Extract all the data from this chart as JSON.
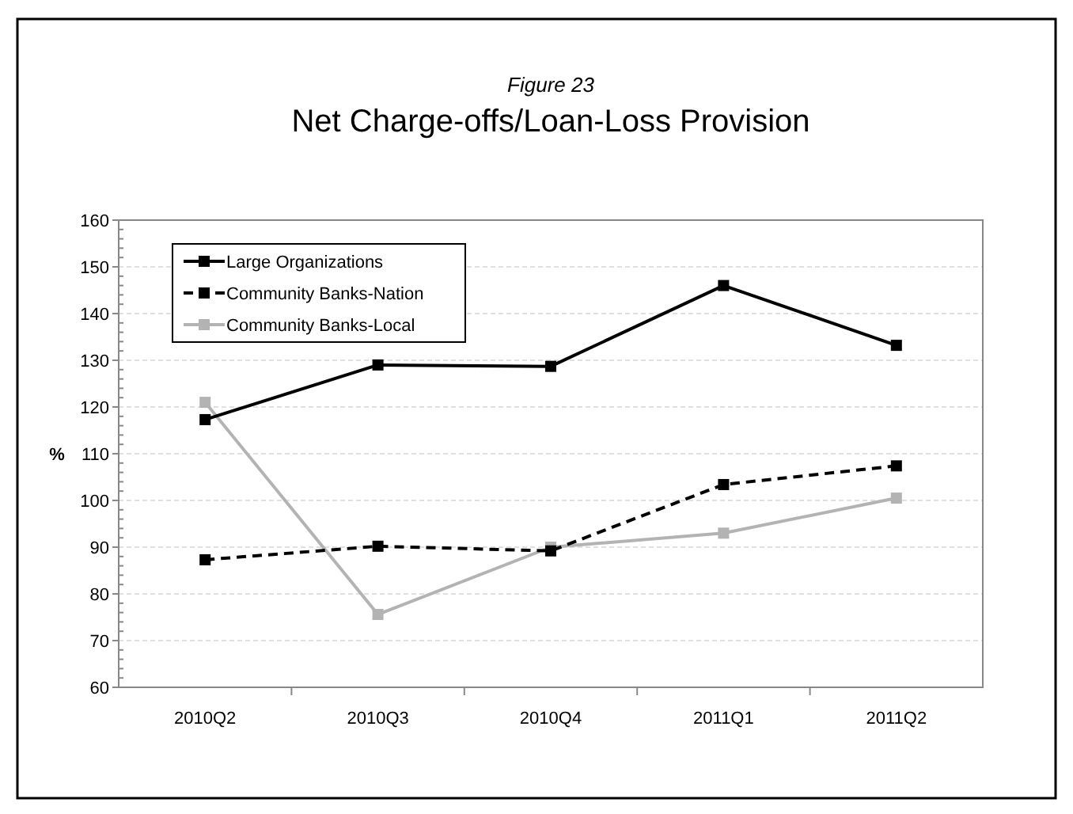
{
  "chart_data": {
    "type": "line",
    "subtitle": "Figure 23",
    "title": "Net Charge-offs/Loan-Loss Provision",
    "ylabel": "%",
    "categories": [
      "2010Q2",
      "2010Q3",
      "2010Q4",
      "2011Q1",
      "2011Q2"
    ],
    "series": [
      {
        "name": "Large Organizations",
        "color": "#000000",
        "line_style": "solid",
        "values": [
          117.3,
          129,
          128.7,
          146,
          133.2
        ]
      },
      {
        "name": "Community Banks-Nation",
        "color": "#000000",
        "line_style": "dashed",
        "values": [
          87.3,
          90.2,
          89.2,
          103.4,
          107.4
        ]
      },
      {
        "name": "Community Banks-Local",
        "color": "#b3b3b3",
        "line_style": "solid",
        "values": [
          121,
          75.6,
          90,
          93,
          100.5
        ]
      }
    ],
    "ylim": [
      60,
      160
    ],
    "yticks": [
      60,
      70,
      80,
      90,
      100,
      110,
      120,
      130,
      140,
      150,
      160
    ],
    "grid": "y",
    "legend": "top left",
    "marker": "square"
  }
}
